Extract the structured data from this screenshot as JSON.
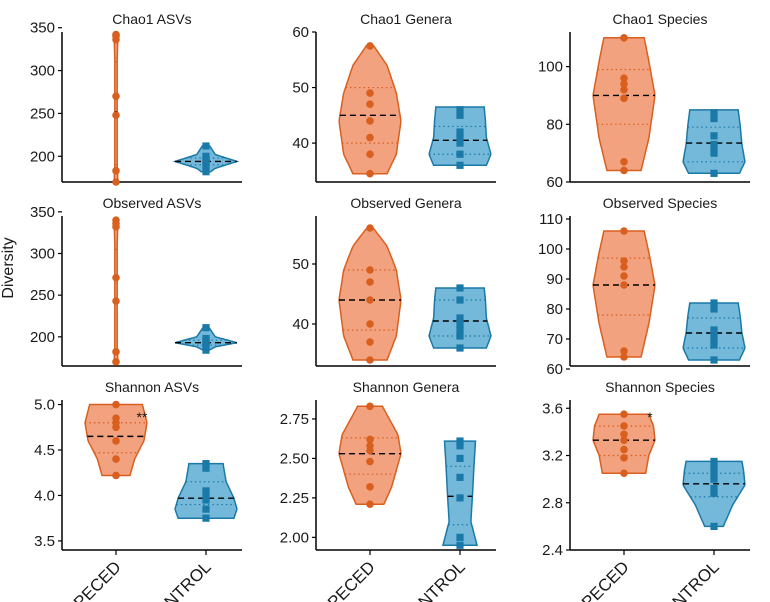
{
  "chart_data": {
    "type": "violin",
    "figure_ylabel": "Diversity",
    "categories": [
      "APECED",
      "CONTROL"
    ],
    "colors": {
      "APECED": {
        "fill": "#f2a27f",
        "line": "#d95f1f"
      },
      "CONTROL": {
        "fill": "#74b9d9",
        "line": "#1b79a8"
      }
    },
    "panels": [
      {
        "title": "Chao1 ASVs",
        "ylim": [
          170,
          345
        ],
        "yticks": [
          {
            "v": 200,
            "label": "200"
          },
          {
            "v": 250,
            "label": "250"
          },
          {
            "v": 300,
            "label": "300"
          },
          {
            "v": 350,
            "label": "350"
          }
        ],
        "significance": "",
        "groups": [
          {
            "name": "APECED",
            "median": 252,
            "q1": 190,
            "q3": 310,
            "min": 170,
            "max": 342,
            "points": [
              170,
              183,
              248,
              270,
              336,
              340,
              342
            ],
            "shape": [
              [
                170,
                0.06
              ],
              [
                200,
                0.03
              ],
              [
                250,
                0.04
              ],
              [
                300,
                0.03
              ],
              [
                342,
                0.06
              ]
            ]
          },
          {
            "name": "CONTROL",
            "median": 194,
            "q1": 190,
            "q3": 198,
            "min": 182,
            "max": 212,
            "points": [
              182,
              188,
              192,
              195,
              197,
              200,
              212
            ],
            "shape": [
              [
                182,
                0.15
              ],
              [
                186,
                0.3
              ],
              [
                194,
                1.0
              ],
              [
                202,
                0.3
              ],
              [
                212,
                0.12
              ]
            ]
          }
        ]
      },
      {
        "title": "Chao1 Genera",
        "ylim": [
          33,
          60
        ],
        "yticks": [
          {
            "v": 40,
            "label": "40"
          },
          {
            "v": 50,
            "label": "50"
          },
          {
            "v": 60,
            "label": "60"
          }
        ],
        "significance": "",
        "groups": [
          {
            "name": "APECED",
            "median": 45,
            "q1": 40,
            "q3": 50,
            "min": 34.5,
            "max": 57.5,
            "points": [
              34.5,
              38,
              41,
              44,
              47,
              49,
              57.5
            ],
            "shape": [
              [
                34.5,
                0.55
              ],
              [
                38,
                0.85
              ],
              [
                44,
                1.0
              ],
              [
                49,
                0.85
              ],
              [
                54,
                0.55
              ],
              [
                57.5,
                0.12
              ]
            ]
          },
          {
            "name": "CONTROL",
            "median": 40.5,
            "q1": 38,
            "q3": 43,
            "min": 36,
            "max": 46.5,
            "points": [
              36,
              38,
              40,
              41,
              42,
              45,
              46
            ],
            "shape": [
              [
                36,
                0.85
              ],
              [
                38,
                1.0
              ],
              [
                41,
                0.85
              ],
              [
                44,
                0.82
              ],
              [
                46.5,
                0.78
              ]
            ]
          }
        ]
      },
      {
        "title": "Chao1 Species",
        "ylim": [
          60,
          112
        ],
        "yticks": [
          {
            "v": 60,
            "label": "60"
          },
          {
            "v": 80,
            "label": "80"
          },
          {
            "v": 100,
            "label": "100"
          }
        ],
        "significance": "",
        "groups": [
          {
            "name": "APECED",
            "median": 90,
            "q1": 80,
            "q3": 99,
            "min": 64,
            "max": 110,
            "points": [
              64,
              67,
              89,
              92,
              94,
              96,
              110
            ],
            "shape": [
              [
                64,
                0.55
              ],
              [
                75,
                0.8
              ],
              [
                90,
                1.0
              ],
              [
                102,
                0.8
              ],
              [
                110,
                0.65
              ]
            ]
          },
          {
            "name": "CONTROL",
            "median": 73.5,
            "q1": 67,
            "q3": 79,
            "min": 63,
            "max": 85,
            "points": [
              63,
              70,
              72,
              73,
              76,
              82,
              84
            ],
            "shape": [
              [
                63,
                0.82
              ],
              [
                67,
                1.0
              ],
              [
                73,
                0.9
              ],
              [
                80,
                0.84
              ],
              [
                85,
                0.78
              ]
            ]
          }
        ]
      },
      {
        "title": "Observed ASVs",
        "ylim": [
          165,
          345
        ],
        "yticks": [
          {
            "v": 200,
            "label": "200"
          },
          {
            "v": 250,
            "label": "250"
          },
          {
            "v": 300,
            "label": "300"
          },
          {
            "v": 350,
            "label": "350"
          }
        ],
        "significance": "",
        "groups": [
          {
            "name": "APECED",
            "median": 245,
            "q1": 185,
            "q3": 305,
            "min": 170,
            "max": 340,
            "points": [
              170,
              182,
              243,
              271,
              332,
              336,
              340
            ],
            "shape": [
              [
                170,
                0.06
              ],
              [
                200,
                0.03
              ],
              [
                250,
                0.04
              ],
              [
                300,
                0.03
              ],
              [
                340,
                0.06
              ]
            ]
          },
          {
            "name": "CONTROL",
            "median": 193,
            "q1": 190,
            "q3": 196,
            "min": 184,
            "max": 211,
            "points": [
              184,
              188,
              191,
              193,
              195,
              198,
              211
            ],
            "shape": [
              [
                184,
                0.1
              ],
              [
                188,
                0.3
              ],
              [
                193,
                1.0
              ],
              [
                200,
                0.3
              ],
              [
                211,
                0.1
              ]
            ]
          }
        ]
      },
      {
        "title": "Observed Genera",
        "ylim": [
          33,
          58
        ],
        "yticks": [
          {
            "v": 40,
            "label": "40"
          },
          {
            "v": 50,
            "label": "50"
          }
        ],
        "significance": "",
        "groups": [
          {
            "name": "APECED",
            "median": 44,
            "q1": 39,
            "q3": 49,
            "min": 34,
            "max": 56,
            "points": [
              34,
              37,
              40,
              44,
              47,
              49,
              56
            ],
            "shape": [
              [
                34,
                0.55
              ],
              [
                38,
                0.85
              ],
              [
                44,
                1.0
              ],
              [
                49,
                0.85
              ],
              [
                53,
                0.55
              ],
              [
                56,
                0.1
              ]
            ]
          },
          {
            "name": "CONTROL",
            "median": 40.5,
            "q1": 38,
            "q3": 44,
            "min": 36,
            "max": 46,
            "points": [
              36,
              38,
              39,
              40,
              41,
              44,
              46
            ],
            "shape": [
              [
                36,
                0.85
              ],
              [
                38,
                1.0
              ],
              [
                41,
                0.85
              ],
              [
                44,
                0.82
              ],
              [
                46,
                0.78
              ]
            ]
          }
        ]
      },
      {
        "title": "Observed Species",
        "ylim": [
          61,
          111
        ],
        "yticks": [
          {
            "v": 60,
            "label": "60"
          },
          {
            "v": 70,
            "label": "70"
          },
          {
            "v": 80,
            "label": "80"
          },
          {
            "v": 90,
            "label": "90"
          },
          {
            "v": 100,
            "label": "100"
          },
          {
            "v": 110,
            "label": "110"
          }
        ],
        "significance": "",
        "groups": [
          {
            "name": "APECED",
            "median": 88,
            "q1": 78,
            "q3": 97,
            "min": 64,
            "max": 106,
            "points": [
              64,
              66,
              88,
              91,
              94,
              96,
              106
            ],
            "shape": [
              [
                64,
                0.55
              ],
              [
                75,
                0.8
              ],
              [
                88,
                1.0
              ],
              [
                99,
                0.8
              ],
              [
                106,
                0.65
              ]
            ]
          },
          {
            "name": "CONTROL",
            "median": 72,
            "q1": 67,
            "q3": 77,
            "min": 63,
            "max": 82,
            "points": [
              63,
              68,
              70,
              71,
              73,
              80,
              82
            ],
            "shape": [
              [
                63,
                0.82
              ],
              [
                67,
                1.0
              ],
              [
                72,
                0.9
              ],
              [
                78,
                0.84
              ],
              [
                82,
                0.78
              ]
            ]
          }
        ]
      },
      {
        "title": "Shannon ASVs",
        "ylim": [
          3.4,
          5.05
        ],
        "yticks": [
          {
            "v": 3.5,
            "label": "3.5"
          },
          {
            "v": 4.0,
            "label": "4.0"
          },
          {
            "v": 4.5,
            "label": "4.5"
          },
          {
            "v": 5.0,
            "label": "5.0"
          }
        ],
        "significance": "**",
        "groups": [
          {
            "name": "APECED",
            "median": 4.65,
            "q1": 4.47,
            "q3": 4.8,
            "min": 4.22,
            "max": 5.0,
            "points": [
              4.22,
              4.4,
              4.6,
              4.75,
              4.8,
              4.85,
              5.0
            ],
            "shape": [
              [
                4.22,
                0.45
              ],
              [
                4.4,
                0.6
              ],
              [
                4.6,
                0.9
              ],
              [
                4.8,
                1.0
              ],
              [
                5.0,
                0.85
              ]
            ]
          },
          {
            "name": "CONTROL",
            "median": 3.97,
            "q1": 3.9,
            "q3": 4.15,
            "min": 3.75,
            "max": 4.35,
            "points": [
              3.75,
              3.85,
              3.95,
              4.0,
              4.05,
              4.3,
              4.35
            ],
            "shape": [
              [
                3.75,
                0.9
              ],
              [
                3.85,
                1.0
              ],
              [
                3.97,
                0.9
              ],
              [
                4.15,
                0.65
              ],
              [
                4.35,
                0.55
              ]
            ]
          }
        ]
      },
      {
        "title": "Shannon Genera",
        "ylim": [
          1.92,
          2.87
        ],
        "yticks": [
          {
            "v": 2.0,
            "label": "2.00"
          },
          {
            "v": 2.25,
            "label": "2.25"
          },
          {
            "v": 2.5,
            "label": "2.50"
          },
          {
            "v": 2.75,
            "label": "2.75"
          }
        ],
        "significance": "",
        "groups": [
          {
            "name": "APECED",
            "median": 2.53,
            "q1": 2.4,
            "q3": 2.63,
            "min": 2.21,
            "max": 2.83,
            "points": [
              2.21,
              2.32,
              2.48,
              2.55,
              2.58,
              2.62,
              2.83
            ],
            "shape": [
              [
                2.21,
                0.45
              ],
              [
                2.32,
                0.7
              ],
              [
                2.53,
                1.0
              ],
              [
                2.65,
                0.9
              ],
              [
                2.83,
                0.4
              ]
            ]
          },
          {
            "name": "CONTROL",
            "median": 2.26,
            "q1": 2.08,
            "q3": 2.45,
            "min": 1.95,
            "max": 2.61,
            "points": [
              1.95,
              2.0,
              2.25,
              2.38,
              2.5,
              2.58,
              2.61
            ],
            "shape": [
              [
                1.95,
                0.55
              ],
              [
                2.1,
                0.35
              ],
              [
                2.26,
                0.4
              ],
              [
                2.45,
                0.45
              ],
              [
                2.61,
                0.5
              ]
            ]
          }
        ]
      },
      {
        "title": "Shannon Species",
        "ylim": [
          2.4,
          3.67
        ],
        "yticks": [
          {
            "v": 2.4,
            "label": "2.4"
          },
          {
            "v": 2.8,
            "label": "2.8"
          },
          {
            "v": 3.2,
            "label": "3.2"
          },
          {
            "v": 3.6,
            "label": "3.6"
          }
        ],
        "significance": "*",
        "groups": [
          {
            "name": "APECED",
            "median": 3.33,
            "q1": 3.2,
            "q3": 3.45,
            "min": 3.05,
            "max": 3.55,
            "points": [
              3.05,
              3.18,
              3.25,
              3.33,
              3.38,
              3.45,
              3.55
            ],
            "shape": [
              [
                3.05,
                0.7
              ],
              [
                3.2,
                0.8
              ],
              [
                3.33,
                1.0
              ],
              [
                3.45,
                0.95
              ],
              [
                3.55,
                0.8
              ]
            ]
          },
          {
            "name": "CONTROL",
            "median": 2.96,
            "q1": 2.85,
            "q3": 3.05,
            "min": 2.6,
            "max": 3.15,
            "points": [
              2.6,
              2.88,
              2.92,
              3.0,
              3.05,
              3.1,
              3.15
            ],
            "shape": [
              [
                2.6,
                0.3
              ],
              [
                2.78,
                0.6
              ],
              [
                2.95,
                1.0
              ],
              [
                3.08,
                0.95
              ],
              [
                3.15,
                0.9
              ]
            ]
          }
        ]
      }
    ]
  }
}
